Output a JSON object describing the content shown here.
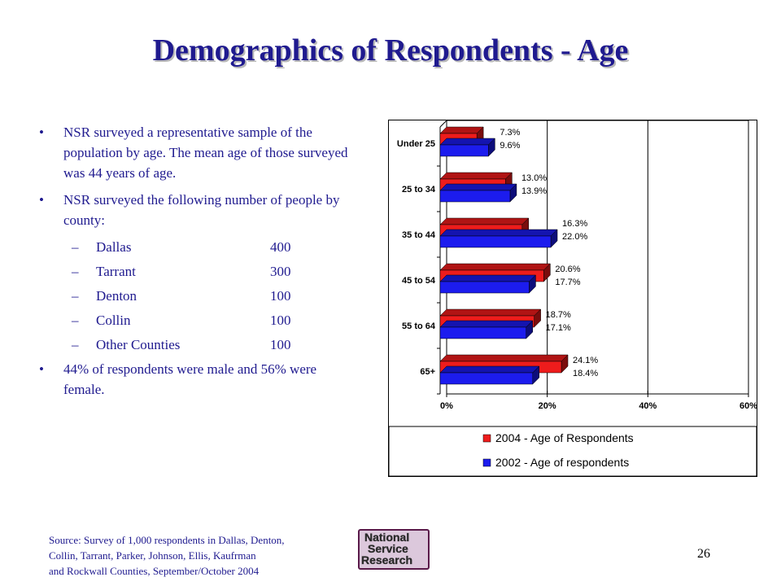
{
  "slide": {
    "title": "Demographics of Respondents - Age",
    "page_number": "26",
    "bullets": [
      "NSR surveyed a representative sample of the population by age.  The mean age of those surveyed was 44 years of age.",
      "NSR surveyed the following number of people by county:",
      "44% of respondents were male and 56% were female."
    ],
    "counties": [
      {
        "name": "Dallas",
        "value": "400"
      },
      {
        "name": "Tarrant",
        "value": "300"
      },
      {
        "name": "Denton",
        "value": "100"
      },
      {
        "name": "Collin",
        "value": "100"
      },
      {
        "name": "Other Counties",
        "value": "100"
      }
    ],
    "bullet_glyph": "•",
    "dash_glyph": "–",
    "source_lines": [
      "Source: Survey of 1,000 respondents in Dallas, Denton,",
      "Collin, Tarrant, Parker, Johnson, Ellis, Kaufrman",
      "and Rockwall Counties, September/October 2004"
    ],
    "logo_lines": [
      "National",
      "Service",
      "Research"
    ]
  },
  "colors": {
    "title": "#1f1a8f",
    "series_2004": "#ee1c1c",
    "series_2002": "#1c1cee",
    "logo_bg": "#dcc8dc",
    "logo_border": "#5a1a4a"
  },
  "chart_data": {
    "type": "bar",
    "orientation": "horizontal",
    "categories": [
      "Under 25",
      "25 to 34",
      "35 to 44",
      "45 to 54",
      "55 to 64",
      "65+"
    ],
    "series": [
      {
        "name": "2004 - Age of Respondents",
        "values": [
          7.3,
          13.0,
          16.3,
          20.6,
          18.7,
          24.1
        ],
        "labels": [
          "7.3%",
          "13.0%",
          "16.3%",
          "20.6%",
          "18.7%",
          "24.1%"
        ]
      },
      {
        "name": "2002 - Age of respondents",
        "values": [
          9.6,
          13.9,
          22.0,
          17.7,
          17.1,
          18.4
        ],
        "labels": [
          "9.6%",
          "13.9%",
          "22.0%",
          "17.7%",
          "17.1%",
          "18.4%"
        ]
      }
    ],
    "xlim": [
      0,
      60
    ],
    "x_ticks": [
      "0%",
      "20%",
      "40%",
      "60%"
    ],
    "legend_position": "bottom",
    "grid": "vertical"
  }
}
